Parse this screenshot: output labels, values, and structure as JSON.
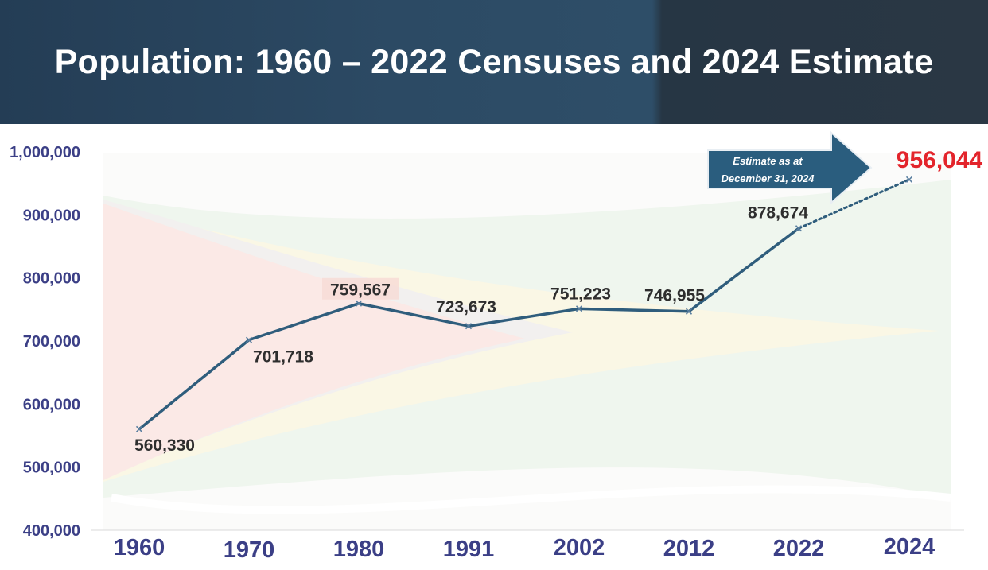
{
  "header": {
    "title": "Population: 1960 – 2022 Censuses and 2024 Estimate"
  },
  "annotation": {
    "line1": "Estimate as at",
    "line2": "December 31, 2024"
  },
  "colors": {
    "header_bg": "#2c4a64",
    "axis_text": "#3b3f86",
    "line": "#2f5d7c",
    "arrow": "#2a5d7e",
    "highlight": "#e3242b"
  },
  "chart_data": {
    "type": "line",
    "title": "Population: 1960 – 2022 Censuses and 2024 Estimate",
    "xlabel": "",
    "ylabel": "",
    "categories": [
      "1960",
      "1970",
      "1980",
      "1991",
      "2002",
      "2012",
      "2022",
      "2024"
    ],
    "series": [
      {
        "values": [
          560330,
          701718,
          759567,
          723673,
          751223,
          746955,
          878674,
          956044
        ],
        "labels": [
          "560,330",
          "701,718",
          "759,567",
          "723,673",
          "751,223",
          "746,955",
          "878,674",
          "956,044"
        ],
        "style": "solid census points; final 2024 segment dotted (estimate)"
      }
    ],
    "ylim": [
      400000,
      1000000
    ],
    "yticks": [
      "400,000",
      "500,000",
      "600,000",
      "700,000",
      "800,000",
      "900,000",
      "1,000,000"
    ],
    "grid": false,
    "legend": "none"
  }
}
